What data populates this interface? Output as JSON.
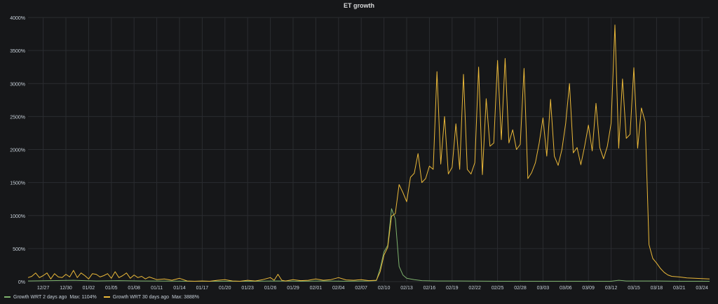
{
  "panel": {
    "title": "ET growth"
  },
  "colors": {
    "green": "#7eb26d",
    "yellow": "#eab839",
    "grid": "#2a2c30",
    "axis_text": "#c7d0d9"
  },
  "legend": [
    {
      "label": "Growth WRT 2 days ago",
      "max_label": "Max: 1104%",
      "color": "#7eb26d"
    },
    {
      "label": "Growth WRT 30 days ago",
      "max_label": "Max: 3888%",
      "color": "#eab839"
    }
  ],
  "chart_data": {
    "type": "line",
    "title": "ET growth",
    "xlabel": "",
    "ylabel": "",
    "ylim": [
      0,
      4000
    ],
    "y_ticks": [
      0,
      500,
      1000,
      1500,
      2000,
      2500,
      3000,
      3500,
      4000
    ],
    "y_tick_labels": [
      "0%",
      "500%",
      "1000%",
      "1500%",
      "2000%",
      "2500%",
      "3000%",
      "3500%",
      "4000%"
    ],
    "x_start": "12/25",
    "x_end": "03/25",
    "x_ticks": [
      "12/27",
      "12/30",
      "01/02",
      "01/05",
      "01/08",
      "01/11",
      "01/14",
      "01/17",
      "01/20",
      "01/23",
      "01/26",
      "01/29",
      "02/01",
      "02/04",
      "02/07",
      "02/10",
      "02/13",
      "02/16",
      "02/19",
      "02/22",
      "02/25",
      "02/28",
      "03/03",
      "03/06",
      "03/09",
      "03/12",
      "03/15",
      "03/18",
      "03/21",
      "03/24"
    ],
    "grid": true,
    "legend_position": "bottom-left",
    "series": [
      {
        "name": "Growth WRT 2 days ago",
        "color": "#7eb26d",
        "points": [
          [
            "12/25",
            10
          ],
          [
            "12/28",
            15
          ],
          [
            "12/31",
            20
          ],
          [
            "01/03",
            10
          ],
          [
            "01/06",
            15
          ],
          [
            "01/09",
            10
          ],
          [
            "01/12",
            8
          ],
          [
            "01/15",
            5
          ],
          [
            "01/18",
            5
          ],
          [
            "01/21",
            5
          ],
          [
            "01/24",
            5
          ],
          [
            "01/27",
            10
          ],
          [
            "01/30",
            5
          ],
          [
            "02/02",
            10
          ],
          [
            "02/05",
            5
          ],
          [
            "02/08",
            10
          ],
          [
            "02/09",
            15
          ],
          [
            "02/09 12:00",
            200
          ],
          [
            "02/10",
            450
          ],
          [
            "02/10 12:00",
            550
          ],
          [
            "02/11",
            1104
          ],
          [
            "02/11 12:00",
            950
          ],
          [
            "02/12",
            230
          ],
          [
            "02/12 12:00",
            100
          ],
          [
            "02/13",
            50
          ],
          [
            "02/14",
            30
          ],
          [
            "02/15",
            15
          ],
          [
            "02/17",
            10
          ],
          [
            "02/20",
            10
          ],
          [
            "02/25",
            5
          ],
          [
            "03/01",
            5
          ],
          [
            "03/05",
            5
          ],
          [
            "03/10",
            5
          ],
          [
            "03/12",
            5
          ],
          [
            "03/13",
            20
          ],
          [
            "03/14",
            10
          ],
          [
            "03/18",
            10
          ],
          [
            "03/21",
            5
          ],
          [
            "03/25",
            5
          ]
        ]
      },
      {
        "name": "Growth WRT 30 days ago",
        "color": "#eab839",
        "points": [
          [
            "12/25",
            60
          ],
          [
            "12/25 12:00",
            80
          ],
          [
            "12/26",
            130
          ],
          [
            "12/26 12:00",
            60
          ],
          [
            "12/27",
            90
          ],
          [
            "12/27 12:00",
            130
          ],
          [
            "12/28",
            40
          ],
          [
            "12/28 12:00",
            120
          ],
          [
            "12/29",
            70
          ],
          [
            "12/29 12:00",
            60
          ],
          [
            "12/30",
            110
          ],
          [
            "12/30 12:00",
            70
          ],
          [
            "12/31",
            170
          ],
          [
            "12/31 12:00",
            60
          ],
          [
            "01/01",
            130
          ],
          [
            "01/01 12:00",
            90
          ],
          [
            "01/02",
            40
          ],
          [
            "01/02 12:00",
            120
          ],
          [
            "01/03",
            110
          ],
          [
            "01/03 12:00",
            70
          ],
          [
            "01/04",
            90
          ],
          [
            "01/04 12:00",
            120
          ],
          [
            "01/05",
            50
          ],
          [
            "01/05 12:00",
            150
          ],
          [
            "01/06",
            60
          ],
          [
            "01/06 12:00",
            90
          ],
          [
            "01/07",
            130
          ],
          [
            "01/07 12:00",
            50
          ],
          [
            "01/08",
            100
          ],
          [
            "01/08 12:00",
            60
          ],
          [
            "01/09",
            80
          ],
          [
            "01/09 12:00",
            40
          ],
          [
            "01/10",
            70
          ],
          [
            "01/11",
            30
          ],
          [
            "01/12",
            40
          ],
          [
            "01/13",
            20
          ],
          [
            "01/14",
            50
          ],
          [
            "01/15",
            10
          ],
          [
            "01/16",
            5
          ],
          [
            "01/17",
            10
          ],
          [
            "01/18",
            5
          ],
          [
            "01/19",
            20
          ],
          [
            "01/20",
            30
          ],
          [
            "01/21",
            10
          ],
          [
            "01/22",
            5
          ],
          [
            "01/23",
            20
          ],
          [
            "01/24",
            10
          ],
          [
            "01/25",
            30
          ],
          [
            "01/26",
            60
          ],
          [
            "01/26 12:00",
            20
          ],
          [
            "01/27",
            110
          ],
          [
            "01/27 12:00",
            20
          ],
          [
            "01/28",
            10
          ],
          [
            "01/29",
            30
          ],
          [
            "01/30",
            15
          ],
          [
            "01/31",
            20
          ],
          [
            "02/01",
            40
          ],
          [
            "02/02",
            20
          ],
          [
            "02/03",
            30
          ],
          [
            "02/04",
            60
          ],
          [
            "02/05",
            25
          ],
          [
            "02/06",
            20
          ],
          [
            "02/07",
            30
          ],
          [
            "02/08",
            15
          ],
          [
            "02/09",
            20
          ],
          [
            "02/09 12:00",
            150
          ],
          [
            "02/10",
            400
          ],
          [
            "02/10 12:00",
            520
          ],
          [
            "02/11",
            990
          ],
          [
            "02/11 12:00",
            1030
          ],
          [
            "02/12",
            1470
          ],
          [
            "02/12 12:00",
            1350
          ],
          [
            "02/13",
            1210
          ],
          [
            "02/13 12:00",
            1580
          ],
          [
            "02/14",
            1640
          ],
          [
            "02/14 12:00",
            1940
          ],
          [
            "02/15",
            1500
          ],
          [
            "02/15 12:00",
            1560
          ],
          [
            "02/16",
            1750
          ],
          [
            "02/16 12:00",
            1700
          ],
          [
            "02/17",
            3180
          ],
          [
            "02/17 12:00",
            1780
          ],
          [
            "02/18",
            2500
          ],
          [
            "02/18 12:00",
            1630
          ],
          [
            "02/19",
            1730
          ],
          [
            "02/19 12:00",
            2390
          ],
          [
            "02/20",
            1700
          ],
          [
            "02/20 12:00",
            3140
          ],
          [
            "02/21",
            1700
          ],
          [
            "02/21 12:00",
            1630
          ],
          [
            "02/22",
            1800
          ],
          [
            "02/22 12:00",
            3250
          ],
          [
            "02/23",
            1620
          ],
          [
            "02/23 12:00",
            2770
          ],
          [
            "02/24",
            2050
          ],
          [
            "02/24 12:00",
            2100
          ],
          [
            "02/25",
            3350
          ],
          [
            "02/25 12:00",
            2150
          ],
          [
            "02/26",
            3380
          ],
          [
            "02/26 12:00",
            2100
          ],
          [
            "02/27",
            2300
          ],
          [
            "02/27 12:00",
            2000
          ],
          [
            "02/28",
            2080
          ],
          [
            "02/28 12:00",
            3230
          ],
          [
            "03/01",
            1560
          ],
          [
            "03/01 12:00",
            1650
          ],
          [
            "03/02",
            1800
          ],
          [
            "03/02 12:00",
            2100
          ],
          [
            "03/03",
            2480
          ],
          [
            "03/03 12:00",
            1900
          ],
          [
            "03/04",
            2760
          ],
          [
            "03/04 12:00",
            1900
          ],
          [
            "03/05",
            1760
          ],
          [
            "03/05 12:00",
            2000
          ],
          [
            "03/06",
            2400
          ],
          [
            "03/06 12:00",
            3000
          ],
          [
            "03/07",
            1950
          ],
          [
            "03/07 12:00",
            2030
          ],
          [
            "03/08",
            1770
          ],
          [
            "03/08 12:00",
            2050
          ],
          [
            "03/09",
            2370
          ],
          [
            "03/09 12:00",
            1980
          ],
          [
            "03/10",
            2700
          ],
          [
            "03/10 12:00",
            2030
          ],
          [
            "03/11",
            1860
          ],
          [
            "03/11 12:00",
            2050
          ],
          [
            "03/12",
            2400
          ],
          [
            "03/12 12:00",
            3888
          ],
          [
            "03/13",
            2020
          ],
          [
            "03/13 12:00",
            3070
          ],
          [
            "03/14",
            2170
          ],
          [
            "03/14 12:00",
            2230
          ],
          [
            "03/15",
            3240
          ],
          [
            "03/15 12:00",
            2020
          ],
          [
            "03/16",
            2630
          ],
          [
            "03/16 12:00",
            2420
          ],
          [
            "03/17",
            560
          ],
          [
            "03/17 12:00",
            350
          ],
          [
            "03/18",
            280
          ],
          [
            "03/18 12:00",
            200
          ],
          [
            "03/19",
            140
          ],
          [
            "03/19 12:00",
            100
          ],
          [
            "03/20",
            80
          ],
          [
            "03/21",
            70
          ],
          [
            "03/22",
            55
          ],
          [
            "03/23",
            50
          ],
          [
            "03/24",
            45
          ],
          [
            "03/25",
            40
          ]
        ]
      }
    ]
  }
}
